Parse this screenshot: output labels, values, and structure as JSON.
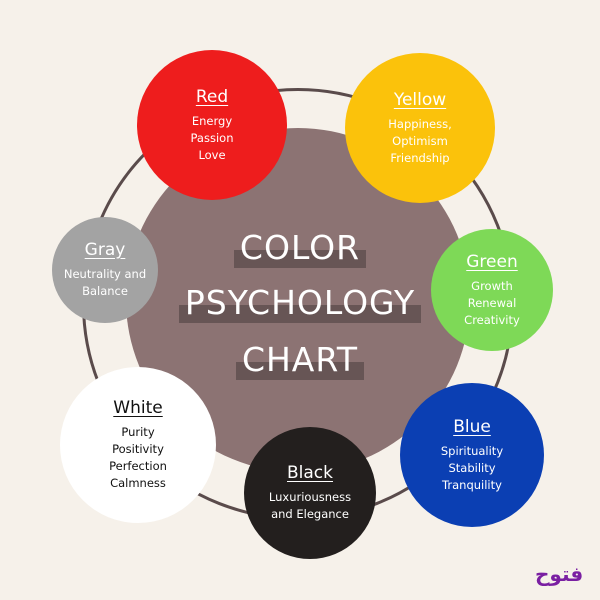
{
  "title": [
    "COLOR",
    "PSYCHOLOGY",
    "CHART"
  ],
  "colors": [
    {
      "name": "Red",
      "traits": [
        "Energy",
        "Passion",
        "Love"
      ],
      "fill": "#ee1d1d",
      "text": "#ffffff"
    },
    {
      "name": "Yellow",
      "traits": [
        "Happiness,",
        "Optimism",
        "Friendship"
      ],
      "fill": "#fbc20b",
      "text": "#ffffff"
    },
    {
      "name": "Gray",
      "traits": [
        "Neutrality and",
        "Balance"
      ],
      "fill": "#a3a3a3",
      "text": "#ffffff"
    },
    {
      "name": "Green",
      "traits": [
        "Growth",
        "Renewal",
        "Creativity"
      ],
      "fill": "#7ed957",
      "text": "#ffffff"
    },
    {
      "name": "White",
      "traits": [
        "Purity",
        "Positivity",
        "Perfection",
        "Calmness"
      ],
      "fill": "#ffffff",
      "text": "#111111"
    },
    {
      "name": "Black",
      "traits": [
        "Luxuriousness",
        "and Elegance"
      ],
      "fill": "#231f1e",
      "text": "#ffffff"
    },
    {
      "name": "Blue",
      "traits": [
        "Spirituality",
        "Stability",
        "Tranquility"
      ],
      "fill": "#0b3fb3",
      "text": "#ffffff"
    }
  ],
  "logo": {
    "text": "فتوح",
    "color": "#7a1fa2"
  }
}
